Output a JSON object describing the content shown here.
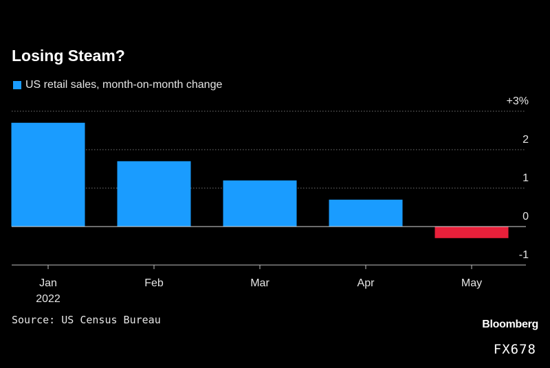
{
  "chart_data": {
    "type": "bar",
    "title": "Losing Steam?",
    "legend": [
      "US retail sales, month-on-month change"
    ],
    "categories": [
      "Jan",
      "Feb",
      "Mar",
      "Apr",
      "May"
    ],
    "category_sublabels": [
      "2022",
      "",
      "",
      "",
      ""
    ],
    "series": [
      {
        "name": "US retail sales, month-on-month change",
        "values": [
          2.7,
          1.7,
          1.2,
          0.7,
          -0.3
        ]
      }
    ],
    "ylim": [
      -1,
      3
    ],
    "yticks": [
      3,
      2,
      1,
      0,
      -1
    ],
    "ytick_labels": [
      "+3%",
      "2",
      "1",
      "0",
      "-1"
    ],
    "xlabel": "",
    "ylabel": "",
    "colors": {
      "positive": "#1a9cff",
      "negative": "#e8203a"
    }
  },
  "footer": {
    "source": "Source: US Census Bureau",
    "brand": "Bloomberg",
    "code": "FX678"
  }
}
